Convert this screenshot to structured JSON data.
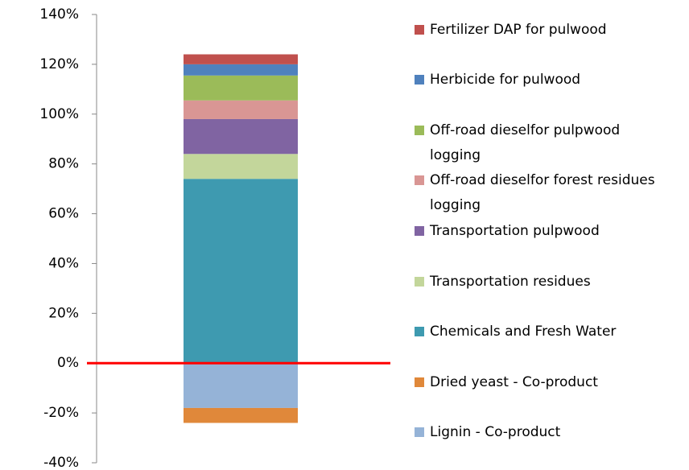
{
  "chart_data": {
    "type": "bar",
    "stacked": true,
    "categories": [
      null
    ],
    "series": [
      {
        "name": "Fertilizer DAP for pulwood",
        "color": "#c0504d",
        "values": [
          4
        ]
      },
      {
        "name": "Herbicide  for pulwood",
        "color": "#4f81bd",
        "values": [
          4.5
        ]
      },
      {
        "name": "Off-road dieselfor pulpwood logging",
        "color": "#9bbb59",
        "values": [
          10
        ]
      },
      {
        "name": "Off-road dieselfor forest residues logging",
        "color": "#d99694",
        "values": [
          7.5
        ]
      },
      {
        "name": "Transportation pulpwood",
        "color": "#8064a2",
        "values": [
          14
        ]
      },
      {
        "name": "Transportation residues",
        "color": "#c3d69b",
        "values": [
          10
        ]
      },
      {
        "name": "Chemicals and Fresh Water",
        "color": "#3e9ab0",
        "values": [
          74
        ]
      },
      {
        "name": "Dried yeast - Co-product",
        "color": "#e0883a",
        "values": [
          -6
        ]
      },
      {
        "name": "Lignin - Co-product",
        "color": "#95b3d7",
        "values": [
          -18
        ]
      }
    ],
    "ylim": [
      -40,
      140
    ],
    "yticks": [
      {
        "value": -40,
        "label": "-40%"
      },
      {
        "value": -20,
        "label": "-20%"
      },
      {
        "value": 0,
        "label": "0%"
      },
      {
        "value": 20,
        "label": "20%"
      },
      {
        "value": 40,
        "label": "40%"
      },
      {
        "value": 60,
        "label": "60%"
      },
      {
        "value": 80,
        "label": "80%"
      },
      {
        "value": 100,
        "label": "100%"
      },
      {
        "value": 120,
        "label": "120%"
      },
      {
        "value": 140,
        "label": "140%"
      }
    ],
    "zero_line_color": "#ff0000",
    "legend": "right"
  }
}
